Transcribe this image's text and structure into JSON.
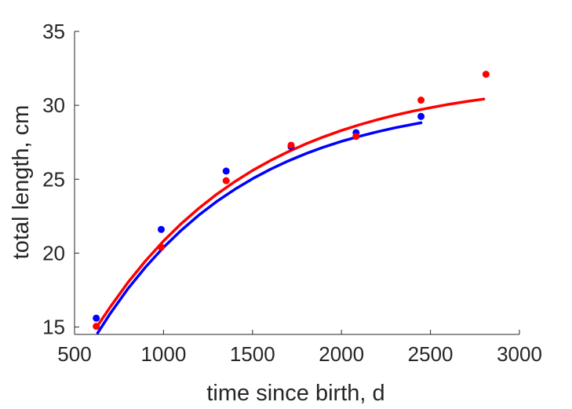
{
  "chart_data": {
    "type": "scatter",
    "xlabel": "time since birth, d",
    "ylabel": "total length, cm",
    "xlim": [
      500,
      3000
    ],
    "ylim": [
      14.5,
      35
    ],
    "xticks": [
      500,
      1000,
      1500,
      2000,
      2500,
      3000
    ],
    "yticks": [
      15,
      20,
      25,
      30,
      35
    ],
    "grid": false,
    "series": [
      {
        "color": "#0000ff",
        "points": {
          "x": [
            622,
            987,
            1352,
            1717,
            2082,
            2447
          ],
          "y": [
            15.6,
            21.6,
            25.55,
            27.2,
            28.15,
            29.25
          ]
        },
        "fit_curve": {
          "x": [
            630,
            700,
            800,
            900,
            1000,
            1100,
            1200,
            1300,
            1400,
            1500,
            1600,
            1700,
            1800,
            1900,
            2000,
            2100,
            2200,
            2300,
            2447
          ],
          "y": [
            14.6,
            15.91,
            17.59,
            19.07,
            20.39,
            21.55,
            22.59,
            23.5,
            24.31,
            25.03,
            25.67,
            26.23,
            26.73,
            27.17,
            27.56,
            27.9,
            28.21,
            28.48,
            28.82
          ]
        }
      },
      {
        "color": "#ff0000",
        "points": {
          "x": [
            622,
            987,
            1352,
            1717,
            2082,
            2447,
            2812
          ],
          "y": [
            15.05,
            20.4,
            24.9,
            27.3,
            27.9,
            30.35,
            32.1
          ]
        },
        "fit_curve": {
          "x": [
            630,
            700,
            800,
            900,
            1000,
            1100,
            1200,
            1300,
            1400,
            1500,
            1600,
            1700,
            1800,
            1900,
            2000,
            2100,
            2200,
            2300,
            2400,
            2500,
            2600,
            2700,
            2800
          ],
          "y": [
            15.1,
            16.35,
            18.01,
            19.49,
            20.82,
            22.0,
            23.05,
            23.99,
            24.83,
            25.59,
            26.26,
            26.86,
            27.39,
            27.87,
            28.3,
            28.68,
            29.02,
            29.33,
            29.6,
            29.84,
            30.06,
            30.25,
            30.42
          ]
        }
      }
    ]
  }
}
